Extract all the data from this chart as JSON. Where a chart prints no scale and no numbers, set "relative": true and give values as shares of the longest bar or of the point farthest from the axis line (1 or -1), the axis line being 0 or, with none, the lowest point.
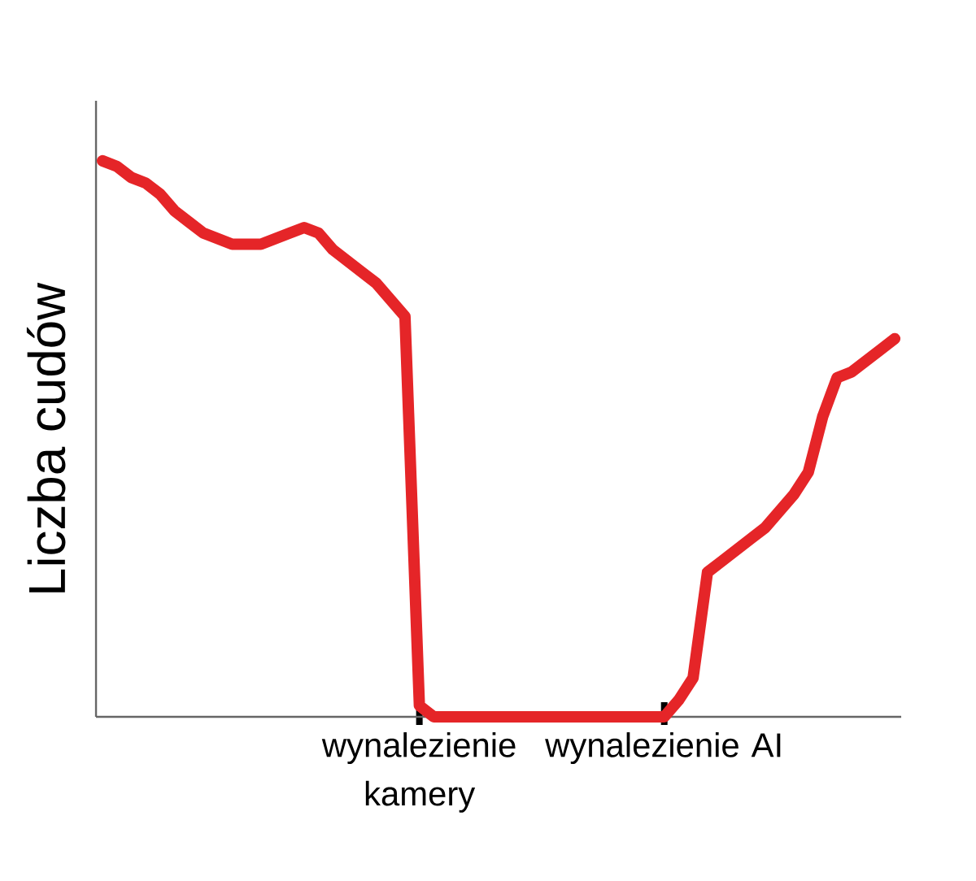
{
  "chart_data": {
    "type": "line",
    "relative": true,
    "ylabel": "Liczba cudów",
    "tick_labels": "x",
    "marker": "none",
    "line_style": "solid",
    "categories": [
      null,
      null,
      null,
      null,
      null,
      null,
      null,
      null,
      null,
      null,
      null,
      null,
      null,
      null,
      null,
      null,
      null,
      null,
      null,
      null,
      null,
      null,
      "wynalezienie kamery",
      null,
      null,
      null,
      null,
      null,
      null,
      null,
      null,
      null,
      null,
      null,
      null,
      null,
      null,
      null,
      null,
      "wynalezienie AI",
      null,
      null,
      null,
      null,
      null,
      null,
      null,
      null,
      null,
      null,
      null,
      null,
      null,
      null,
      null,
      null
    ],
    "series": [
      {
        "color": "#e52528",
        "values": [
          1.0,
          0.99,
          0.97,
          0.96,
          0.94,
          0.91,
          0.89,
          0.87,
          0.86,
          0.85,
          0.85,
          0.85,
          0.86,
          0.87,
          0.88,
          0.87,
          0.84,
          0.82,
          0.8,
          0.78,
          0.75,
          0.72,
          0.02,
          0,
          0,
          0,
          0,
          0,
          0,
          0,
          0,
          0,
          0,
          0,
          0,
          0,
          0,
          0,
          0,
          0,
          0.03,
          0.07,
          0.26,
          0.28,
          0.3,
          0.32,
          0.34,
          0.37,
          0.4,
          0.44,
          0.54,
          0.61,
          0.62,
          0.64,
          0.66,
          0.68
        ]
      }
    ]
  }
}
